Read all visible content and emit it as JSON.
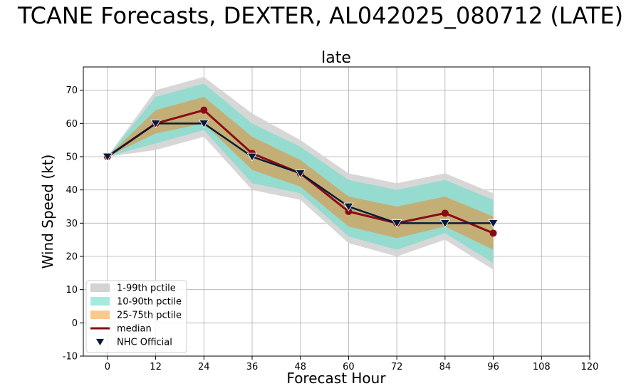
{
  "suptitle": "TCANE Forecasts, DEXTER, AL042025_080712 (LATE)",
  "chart_data": {
    "type": "line",
    "title": "late",
    "xlabel": "Forecast Hour",
    "ylabel": "Wind Speed (kt)",
    "xlim": [
      -6,
      120
    ],
    "ylim": [
      -10,
      77
    ],
    "xticks": [
      0,
      12,
      24,
      36,
      48,
      60,
      72,
      84,
      96,
      108,
      120
    ],
    "yticks": [
      -10,
      0,
      10,
      20,
      30,
      40,
      50,
      60,
      70
    ],
    "grid": true,
    "legend_position": "lower-left",
    "x": [
      0,
      12,
      24,
      36,
      48,
      60,
      72,
      84,
      96
    ],
    "bands": [
      {
        "name": "1-99th pctile",
        "color": "#d3d3d3",
        "lower": [
          50,
          52,
          56,
          40,
          37,
          24,
          20,
          25,
          16
        ],
        "upper": [
          50,
          70,
          74,
          63,
          55,
          45,
          42,
          45,
          39
        ]
      },
      {
        "name": "10-90th pctile",
        "color": "#8fdccf",
        "lower": [
          50,
          54,
          58,
          42,
          39,
          26,
          22,
          27,
          18
        ],
        "upper": [
          50,
          68,
          72,
          60,
          53,
          43,
          40,
          43,
          37
        ]
      },
      {
        "name": "25-75th pctile",
        "color": "#c8aa6a",
        "lower": [
          50,
          57,
          60,
          46,
          41,
          29,
          25.5,
          29,
          22
        ],
        "upper": [
          50,
          64,
          68,
          56,
          49,
          38,
          35,
          38,
          32
        ]
      }
    ],
    "series": [
      {
        "name": "median",
        "color": "#8b0a14",
        "values": [
          50,
          60,
          64,
          51,
          45,
          33.5,
          30,
          33,
          27
        ]
      },
      {
        "name": "NHC Official",
        "color": "#0a1a3a",
        "values": [
          50,
          60,
          60,
          50,
          45,
          35,
          30,
          30,
          30
        ]
      }
    ],
    "legend": [
      {
        "label": "1-99th pctile",
        "kind": "patch",
        "color": "#d3d3d3"
      },
      {
        "label": "10-90th pctile",
        "kind": "patch",
        "color": "#a6eadf"
      },
      {
        "label": "25-75th pctile",
        "kind": "patch",
        "color": "#fbc98c"
      },
      {
        "label": "median",
        "kind": "line",
        "color": "#8b0a14"
      },
      {
        "label": "NHC Official",
        "kind": "marker",
        "color": "#0a1a3a"
      }
    ]
  }
}
